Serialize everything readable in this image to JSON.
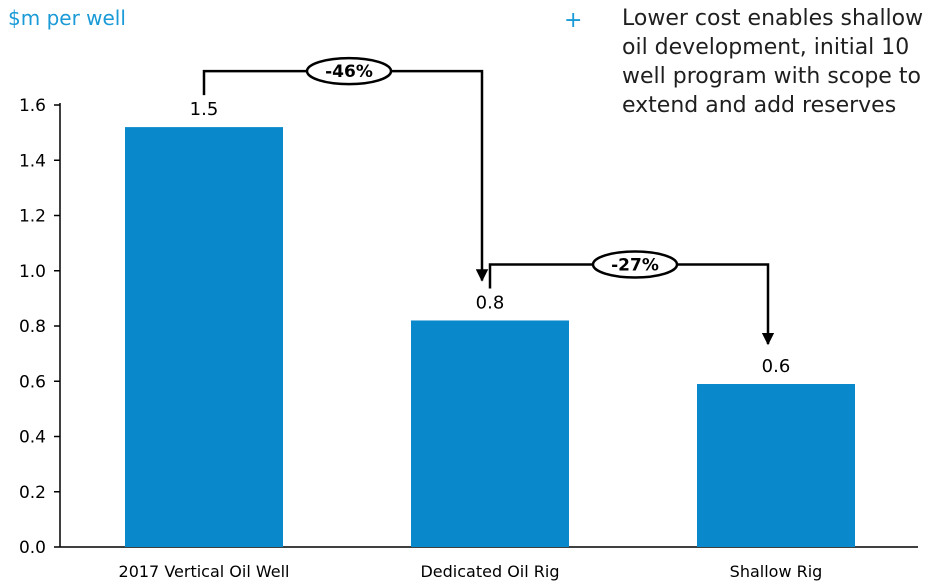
{
  "unit_label": "$m per well",
  "note": {
    "bullet": "+",
    "text": "Lower cost enables shallow oil development, initial 10 well program with scope to extend and add reserves"
  },
  "colors": {
    "bar": "#0a88cc",
    "accent": "#1a9ad6",
    "axis": "#000000"
  },
  "chart_data": {
    "type": "bar",
    "categories": [
      "2017 Vertical Oil Well",
      "Dedicated Oil Rig",
      "Shallow Rig"
    ],
    "values": [
      1.52,
      0.82,
      0.59
    ],
    "data_labels": [
      "1.5",
      "0.8",
      "0.6"
    ],
    "ylim": [
      0,
      1.6
    ],
    "yticks": [
      "0.0",
      "0.2",
      "0.4",
      "0.6",
      "0.8",
      "1.0",
      "1.2",
      "1.4",
      "1.6"
    ],
    "ylabel": "$m per well",
    "grid": false,
    "annotations": [
      {
        "label": "-46%",
        "from": 0,
        "to": 1
      },
      {
        "label": "-27%",
        "from": 1,
        "to": 2
      }
    ]
  }
}
